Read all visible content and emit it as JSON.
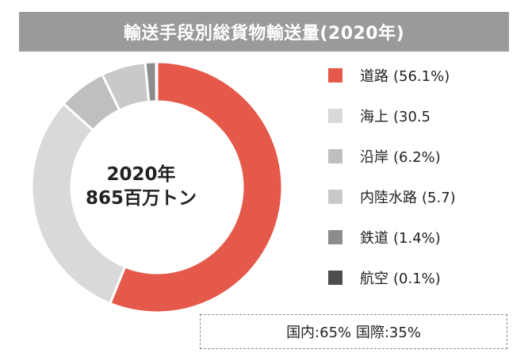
{
  "title": "輸送手段別総貨物輸送量(2020年)",
  "center": {
    "line1": "2020年",
    "line2": "865百万トン"
  },
  "note": "国内:65% 国際:35%",
  "chart_data": {
    "type": "pie",
    "donut": true,
    "title": "輸送手段別総貨物輸送量(2020年)",
    "legend_position": "right",
    "slices": [
      {
        "label": "道路",
        "value_text": "(56.1%)",
        "value": 56.1,
        "color": "#E4594A"
      },
      {
        "label": "海上",
        "value_text": "(30.5",
        "value": 30.5,
        "color": "#D9D9D9"
      },
      {
        "label": "沿岸",
        "value_text": "(6.2%)",
        "value": 6.2,
        "color": "#BFBFBF"
      },
      {
        "label": "内陸水路",
        "value_text": "(5.7)",
        "value": 5.7,
        "color": "#C9C9C9"
      },
      {
        "label": "鉄道",
        "value_text": "(1.4%)",
        "value": 1.4,
        "color": "#8C8C8C"
      },
      {
        "label": "航空",
        "value_text": "(0.1%)",
        "value": 0.1,
        "color": "#4D4D4D"
      }
    ]
  }
}
